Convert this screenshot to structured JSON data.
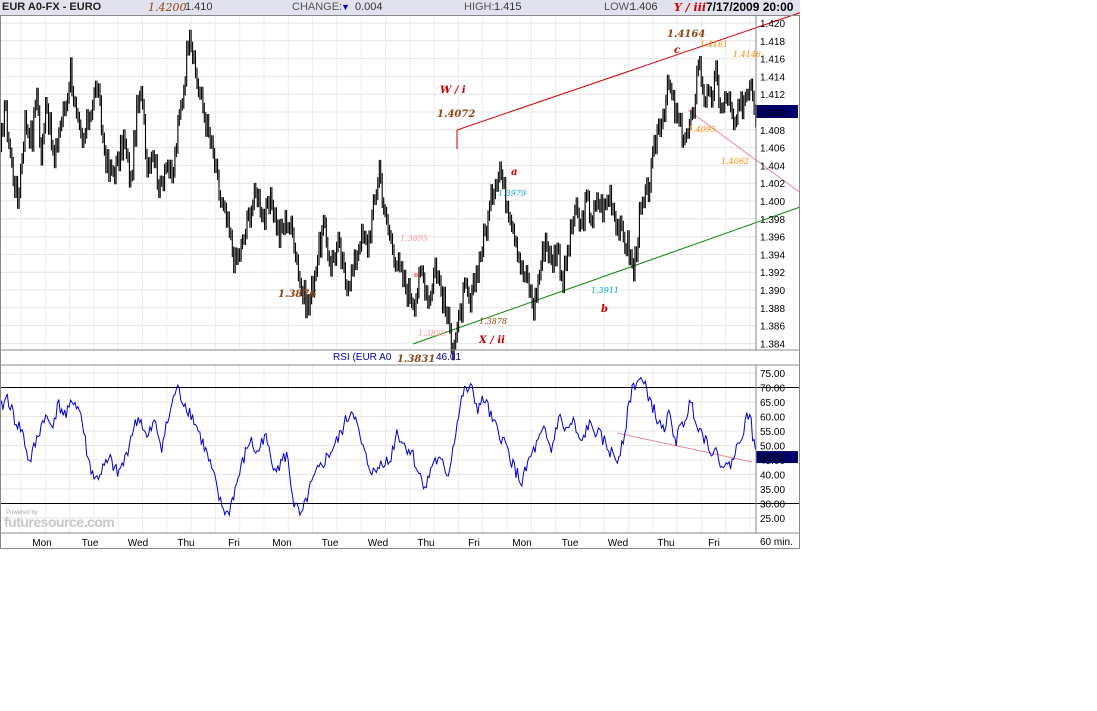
{
  "header": {
    "symbol": "EUR A0-FX - EURO",
    "open_high_label": "1.4200",
    "last": "1.410",
    "change_label": "CHANGE:",
    "change": "0.004",
    "high_label": "HIGH:",
    "high": "1.415",
    "low_label": "LOW:",
    "low": "1.406",
    "wave_label": "Y / iii",
    "datetime": "7/17/2009 20:00"
  },
  "colors": {
    "price": "#000000",
    "rsi": "#0000cc",
    "channel_red": "#cc0000",
    "channel_green": "#008800",
    "divergence": "#ee8899",
    "label_brown": "#8b4513",
    "label_orange": "#ff8c00",
    "label_cyan": "#00aadd",
    "label_pink": "#ff9999",
    "current_bg": "#000066"
  },
  "chart_data": {
    "type": "line",
    "title": "EUR A0-FX - EURO",
    "price_axis": {
      "ylim": [
        1.383,
        1.421
      ],
      "ticks": [
        "1.420",
        "1.418",
        "1.416",
        "1.414",
        "1.412",
        "1.410",
        "1.408",
        "1.406",
        "1.404",
        "1.402",
        "1.400",
        "1.398",
        "1.396",
        "1.394",
        "1.392",
        "1.390",
        "1.388",
        "1.386",
        "1.384"
      ],
      "current": "1.410"
    },
    "rsi_axis": {
      "label": "RSI (EUR A0",
      "value": "46.01",
      "ylim": [
        22,
        77
      ],
      "ticks": [
        "75.00",
        "70.00",
        "65.00",
        "60.00",
        "55.00",
        "50.00",
        "45.00",
        "40.00",
        "35.00",
        "30.00",
        "25.00"
      ],
      "levels": [
        70,
        30
      ]
    },
    "x_ticks": [
      "Mon",
      "Tue",
      "Wed",
      "Thu",
      "Fri",
      "Mon",
      "Tue",
      "Wed",
      "Thu",
      "Fri",
      "Mon",
      "Tue",
      "Wed",
      "Thu",
      "Fri"
    ],
    "interval": "60 min.",
    "price_keypoints": [
      [
        0,
        1.405
      ],
      [
        3,
        1.411
      ],
      [
        8,
        1.404
      ],
      [
        12,
        1.4
      ],
      [
        17,
        1.409
      ],
      [
        22,
        1.407
      ],
      [
        25,
        1.413
      ],
      [
        28,
        1.404
      ],
      [
        31,
        1.412
      ],
      [
        37,
        1.404
      ],
      [
        40,
        1.408
      ],
      [
        45,
        1.411
      ],
      [
        48,
        1.415
      ],
      [
        52,
        1.409
      ],
      [
        56,
        1.406
      ],
      [
        61,
        1.41
      ],
      [
        66,
        1.413
      ],
      [
        70,
        1.407
      ],
      [
        74,
        1.403
      ],
      [
        80,
        1.404
      ],
      [
        84,
        1.407
      ],
      [
        89,
        1.402
      ],
      [
        93,
        1.41
      ],
      [
        97,
        1.412
      ],
      [
        100,
        1.404
      ],
      [
        104,
        1.406
      ],
      [
        109,
        1.401
      ],
      [
        113,
        1.405
      ],
      [
        117,
        1.402
      ],
      [
        121,
        1.408
      ],
      [
        125,
        1.413
      ],
      [
        129,
        1.42
      ],
      [
        132,
        1.415
      ],
      [
        136,
        1.412
      ],
      [
        140,
        1.409
      ],
      [
        145,
        1.405
      ],
      [
        150,
        1.4
      ],
      [
        155,
        1.397
      ],
      [
        160,
        1.393
      ],
      [
        165,
        1.395
      ],
      [
        170,
        1.399
      ],
      [
        175,
        1.401
      ],
      [
        180,
        1.398
      ],
      [
        185,
        1.4
      ],
      [
        190,
        1.396
      ],
      [
        195,
        1.398
      ],
      [
        200,
        1.396
      ],
      [
        205,
        1.39
      ],
      [
        210,
        1.388
      ],
      [
        215,
        1.393
      ],
      [
        220,
        1.397
      ],
      [
        225,
        1.393
      ],
      [
        230,
        1.395
      ],
      [
        235,
        1.391
      ],
      [
        240,
        1.392
      ],
      [
        245,
        1.396
      ],
      [
        250,
        1.395
      ],
      [
        255,
        1.4
      ],
      [
        258,
        1.404
      ],
      [
        262,
        1.398
      ],
      [
        267,
        1.395
      ],
      [
        272,
        1.392
      ],
      [
        277,
        1.39
      ],
      [
        282,
        1.389
      ],
      [
        287,
        1.392
      ],
      [
        292,
        1.389
      ],
      [
        296,
        1.393
      ],
      [
        300,
        1.39
      ],
      [
        304,
        1.387
      ],
      [
        308,
        1.384
      ],
      [
        312,
        1.386
      ],
      [
        316,
        1.39
      ],
      [
        320,
        1.388
      ],
      [
        324,
        1.392
      ],
      [
        328,
        1.395
      ],
      [
        332,
        1.398
      ],
      [
        336,
        1.402
      ],
      [
        340,
        1.404
      ],
      [
        343,
        1.401
      ],
      [
        347,
        1.399
      ],
      [
        351,
        1.396
      ],
      [
        355,
        1.392
      ],
      [
        359,
        1.391
      ],
      [
        363,
        1.388
      ],
      [
        367,
        1.392
      ],
      [
        371,
        1.396
      ],
      [
        375,
        1.393
      ],
      [
        379,
        1.395
      ],
      [
        383,
        1.391
      ],
      [
        387,
        1.395
      ],
      [
        391,
        1.399
      ],
      [
        395,
        1.397
      ],
      [
        399,
        1.4
      ],
      [
        403,
        1.398
      ],
      [
        407,
        1.4
      ],
      [
        411,
        1.399
      ],
      [
        415,
        1.401
      ],
      [
        419,
        1.398
      ],
      [
        423,
        1.396
      ],
      [
        427,
        1.395
      ],
      [
        431,
        1.392
      ],
      [
        435,
        1.398
      ],
      [
        439,
        1.4
      ],
      [
        443,
        1.403
      ],
      [
        447,
        1.408
      ],
      [
        451,
        1.41
      ],
      [
        455,
        1.413
      ],
      [
        459,
        1.41
      ],
      [
        463,
        1.408
      ],
      [
        467,
        1.407
      ],
      [
        471,
        1.409
      ],
      [
        475,
        1.416
      ],
      [
        479,
        1.412
      ],
      [
        483,
        1.411
      ],
      [
        487,
        1.414
      ],
      [
        491,
        1.41
      ],
      [
        495,
        1.412
      ],
      [
        499,
        1.408
      ],
      [
        503,
        1.41
      ],
      [
        507,
        1.412
      ],
      [
        511,
        1.414
      ],
      [
        514,
        1.41
      ]
    ],
    "rsi_keypoints": [
      [
        0,
        62
      ],
      [
        5,
        67
      ],
      [
        10,
        59
      ],
      [
        15,
        55
      ],
      [
        20,
        44
      ],
      [
        25,
        52
      ],
      [
        30,
        60
      ],
      [
        35,
        57
      ],
      [
        40,
        64
      ],
      [
        45,
        60
      ],
      [
        50,
        66
      ],
      [
        55,
        61
      ],
      [
        60,
        45
      ],
      [
        65,
        38
      ],
      [
        70,
        42
      ],
      [
        75,
        45
      ],
      [
        80,
        40
      ],
      [
        85,
        45
      ],
      [
        90,
        55
      ],
      [
        95,
        60
      ],
      [
        100,
        52
      ],
      [
        105,
        58
      ],
      [
        110,
        50
      ],
      [
        115,
        60
      ],
      [
        120,
        70
      ],
      [
        125,
        65
      ],
      [
        130,
        61
      ],
      [
        135,
        55
      ],
      [
        140,
        48
      ],
      [
        145,
        40
      ],
      [
        150,
        30
      ],
      [
        155,
        26
      ],
      [
        160,
        35
      ],
      [
        165,
        44
      ],
      [
        170,
        52
      ],
      [
        175,
        47
      ],
      [
        180,
        54
      ],
      [
        185,
        44
      ],
      [
        190,
        43
      ],
      [
        195,
        47
      ],
      [
        200,
        30
      ],
      [
        205,
        25
      ],
      [
        210,
        34
      ],
      [
        215,
        40
      ],
      [
        220,
        44
      ],
      [
        225,
        48
      ],
      [
        230,
        52
      ],
      [
        235,
        58
      ],
      [
        240,
        63
      ],
      [
        245,
        52
      ],
      [
        250,
        44
      ],
      [
        255,
        40
      ],
      [
        260,
        45
      ],
      [
        265,
        44
      ],
      [
        270,
        55
      ],
      [
        275,
        50
      ],
      [
        280,
        48
      ],
      [
        285,
        40
      ],
      [
        290,
        36
      ],
      [
        295,
        45
      ],
      [
        300,
        44
      ],
      [
        305,
        40
      ],
      [
        310,
        55
      ],
      [
        315,
        68
      ],
      [
        320,
        70
      ],
      [
        325,
        63
      ],
      [
        330,
        66
      ],
      [
        335,
        58
      ],
      [
        340,
        54
      ],
      [
        345,
        49
      ],
      [
        350,
        42
      ],
      [
        355,
        37
      ],
      [
        360,
        45
      ],
      [
        365,
        50
      ],
      [
        370,
        55
      ],
      [
        375,
        48
      ],
      [
        380,
        60
      ],
      [
        385,
        55
      ],
      [
        390,
        58
      ],
      [
        395,
        50
      ],
      [
        400,
        57
      ],
      [
        405,
        55
      ],
      [
        410,
        52
      ],
      [
        415,
        48
      ],
      [
        420,
        45
      ],
      [
        425,
        55
      ],
      [
        430,
        70
      ],
      [
        435,
        73
      ],
      [
        440,
        69
      ],
      [
        445,
        62
      ],
      [
        450,
        55
      ],
      [
        455,
        60
      ],
      [
        460,
        52
      ],
      [
        465,
        58
      ],
      [
        470,
        65
      ],
      [
        475,
        57
      ],
      [
        480,
        52
      ],
      [
        485,
        48
      ],
      [
        490,
        45
      ],
      [
        495,
        42
      ],
      [
        500,
        47
      ],
      [
        505,
        55
      ],
      [
        510,
        62
      ],
      [
        514,
        46
      ]
    ]
  },
  "annotations": {
    "wave_w": "W / i",
    "p_1_4072": "1.4072",
    "p_1_4200": "1.4200",
    "p_1_3876": "1.3876",
    "p_1_3895": "1.3895",
    "p_1_3858": "1.3858",
    "p_1_3831": "1.3831",
    "p_1_3878": "1.3878",
    "wave_x": "X / ii",
    "wave_a": "a",
    "p_1_3979": "1.3979",
    "p_1_3911": "1.3911",
    "wave_b": "b",
    "wave_c": "c",
    "p_1_4164": "1.4164",
    "p_1_4161": "1.4161",
    "p_1_4146": "1.4146",
    "p_1_4095": "1.4095",
    "p_1_4062": "1.4062"
  },
  "footer": {
    "brand": "futuresource.com",
    "powered": "Powered by"
  }
}
